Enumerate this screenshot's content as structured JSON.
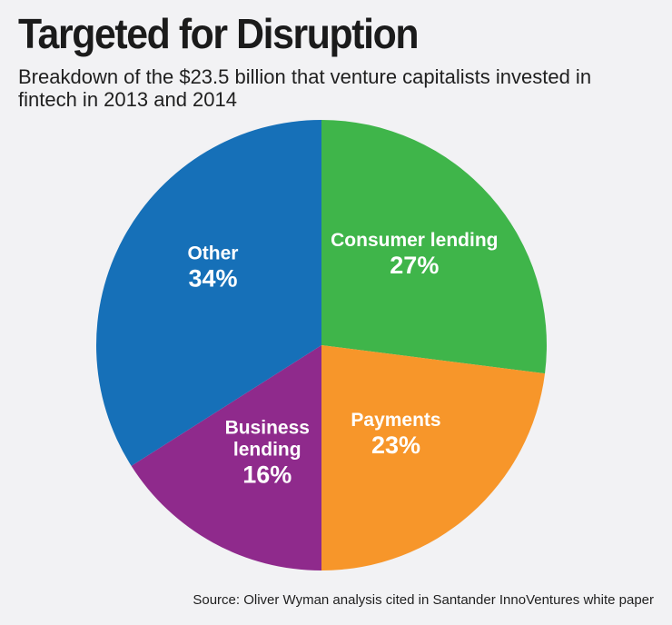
{
  "chart_data": {
    "type": "pie",
    "title": "Targeted for Disruption",
    "subtitle": "Breakdown of the $23.5 billion that venture capitalists invested in fintech in 2013 and 2014",
    "slices": [
      {
        "label_lines": [
          "Consumer lending"
        ],
        "value": 27,
        "value_label": "27%",
        "color": "#3fb54a"
      },
      {
        "label_lines": [
          "Payments"
        ],
        "value": 23,
        "value_label": "23%",
        "color": "#f7962a"
      },
      {
        "label_lines": [
          "Business",
          "lending"
        ],
        "value": 16,
        "value_label": "16%",
        "color": "#8f2a8c"
      },
      {
        "label_lines": [
          "Other"
        ],
        "value": 34,
        "value_label": "34%",
        "color": "#1670b8"
      }
    ],
    "start": "top, clockwise",
    "source": "Source: Oliver Wyman analysis cited in Santander InnoVentures white paper"
  }
}
